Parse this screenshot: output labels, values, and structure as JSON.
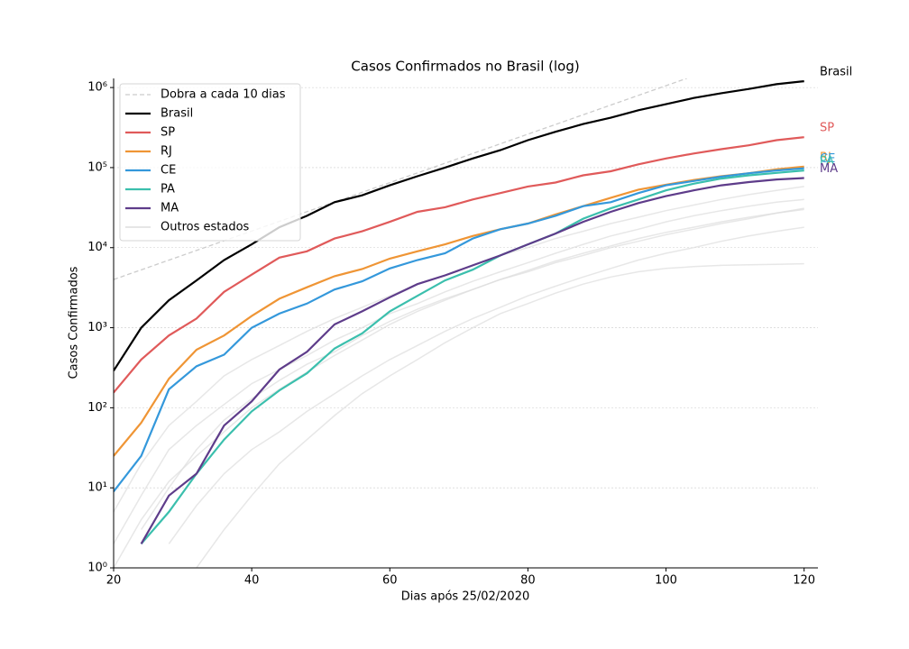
{
  "chart_data": {
    "type": "line",
    "title": "Casos Confirmados no Brasil (log)",
    "xlabel": "Dias após 25/02/2020",
    "ylabel": "Casos Confirmados",
    "log_y": true,
    "grid": true,
    "legend": "upper left",
    "xlim": [
      20,
      122
    ],
    "ylim": [
      1,
      1300000
    ],
    "xticks": [
      20,
      40,
      60,
      80,
      100,
      120
    ],
    "yticks": [
      {
        "value": 1,
        "label": "10⁰"
      },
      {
        "value": 10,
        "label": "10¹"
      },
      {
        "value": 100,
        "label": "10²"
      },
      {
        "value": 1000,
        "label": "10³"
      },
      {
        "value": 10000,
        "label": "10⁴"
      },
      {
        "value": 100000,
        "label": "10⁵"
      },
      {
        "value": 1000000,
        "label": "10⁶"
      }
    ],
    "reference": {
      "name": "Dobra a cada 10 dias",
      "color": "#cccccc",
      "x": [
        20,
        103
      ],
      "values": [
        4000,
        1300000
      ]
    },
    "x": [
      20,
      24,
      28,
      32,
      36,
      40,
      44,
      48,
      52,
      56,
      60,
      64,
      68,
      72,
      76,
      80,
      84,
      88,
      92,
      96,
      100,
      104,
      108,
      112,
      116,
      120
    ],
    "series": [
      {
        "name": "Brasil",
        "color": "#000000",
        "values": [
          290,
          1000,
          2200,
          3900,
          7000,
          11000,
          18000,
          25000,
          37000,
          45000,
          60000,
          78000,
          100000,
          130000,
          165000,
          220000,
          280000,
          350000,
          420000,
          520000,
          620000,
          740000,
          850000,
          960000,
          1100000,
          1200000
        ]
      },
      {
        "name": "SP",
        "color": "#e05a5a",
        "values": [
          155,
          400,
          800,
          1300,
          2800,
          4600,
          7500,
          9000,
          13000,
          16000,
          21000,
          28000,
          32000,
          40000,
          48000,
          58000,
          65000,
          80000,
          90000,
          110000,
          130000,
          150000,
          170000,
          190000,
          220000,
          240000
        ]
      },
      {
        "name": "RJ",
        "color": "#ef9535",
        "values": [
          25,
          65,
          230,
          530,
          800,
          1400,
          2300,
          3200,
          4400,
          5400,
          7300,
          9000,
          11000,
          14000,
          17000,
          20000,
          26000,
          33000,
          42000,
          53000,
          61000,
          70000,
          78000,
          85000,
          95000,
          103000
        ]
      },
      {
        "name": "CE",
        "color": "#3498db",
        "values": [
          9,
          25,
          170,
          330,
          460,
          1000,
          1500,
          2000,
          3000,
          3800,
          5500,
          7000,
          8500,
          13000,
          17000,
          20000,
          25000,
          33000,
          37000,
          48000,
          60000,
          68000,
          77000,
          85000,
          92000,
          98000
        ]
      },
      {
        "name": "PA",
        "color": "#3bbfad",
        "values": [
          null,
          2,
          5,
          15,
          40,
          90,
          165,
          270,
          550,
          850,
          1600,
          2500,
          3900,
          5300,
          8000,
          11000,
          15000,
          23000,
          31000,
          40000,
          52000,
          63000,
          73000,
          80000,
          86000,
          92000
        ]
      },
      {
        "name": "MA",
        "color": "#5e3c8a",
        "values": [
          null,
          2,
          8,
          15,
          60,
          120,
          300,
          500,
          1100,
          1600,
          2400,
          3500,
          4500,
          6000,
          8000,
          11000,
          15000,
          21000,
          28000,
          36000,
          44000,
          52000,
          60000,
          66000,
          71000,
          74000
        ]
      }
    ],
    "others": {
      "name": "Outros estados",
      "color": "#dddddd",
      "lines": [
        [
          5,
          20,
          60,
          120,
          250,
          400,
          600,
          900,
          1300,
          1800,
          2500,
          3500,
          4500,
          6000,
          8000,
          10000,
          13000,
          16000,
          20000,
          24000,
          29000,
          34000,
          40000,
          46000,
          52000,
          58000
        ],
        [
          null,
          3,
          10,
          30,
          70,
          130,
          220,
          350,
          500,
          800,
          1200,
          1700,
          2300,
          3000,
          4000,
          5000,
          6500,
          8000,
          10000,
          12000,
          14500,
          17000,
          20000,
          23000,
          27000,
          31000
        ],
        [
          null,
          null,
          2,
          6,
          15,
          30,
          50,
          90,
          150,
          250,
          400,
          600,
          900,
          1300,
          1800,
          2500,
          3300,
          4300,
          5500,
          7000,
          8500,
          10000,
          12000,
          14000,
          16000,
          18000
        ],
        [
          2,
          8,
          30,
          60,
          110,
          200,
          300,
          450,
          700,
          1000,
          1500,
          2000,
          2800,
          3800,
          5000,
          6500,
          8500,
          11000,
          14000,
          17000,
          21000,
          25000,
          29000,
          33000,
          37000,
          40000
        ],
        [
          null,
          null,
          null,
          1,
          3,
          8,
          20,
          40,
          80,
          150,
          250,
          400,
          650,
          1000,
          1500,
          2000,
          2700,
          3500,
          4300,
          5000,
          5500,
          5800,
          6000,
          6100,
          6200,
          6300
        ],
        [
          1,
          4,
          12,
          25,
          50,
          100,
          170,
          280,
          450,
          700,
          1100,
          1600,
          2200,
          3000,
          4000,
          5200,
          6800,
          8500,
          10500,
          13000,
          15500,
          18000,
          21000,
          24000,
          27000,
          30000
        ]
      ]
    }
  }
}
